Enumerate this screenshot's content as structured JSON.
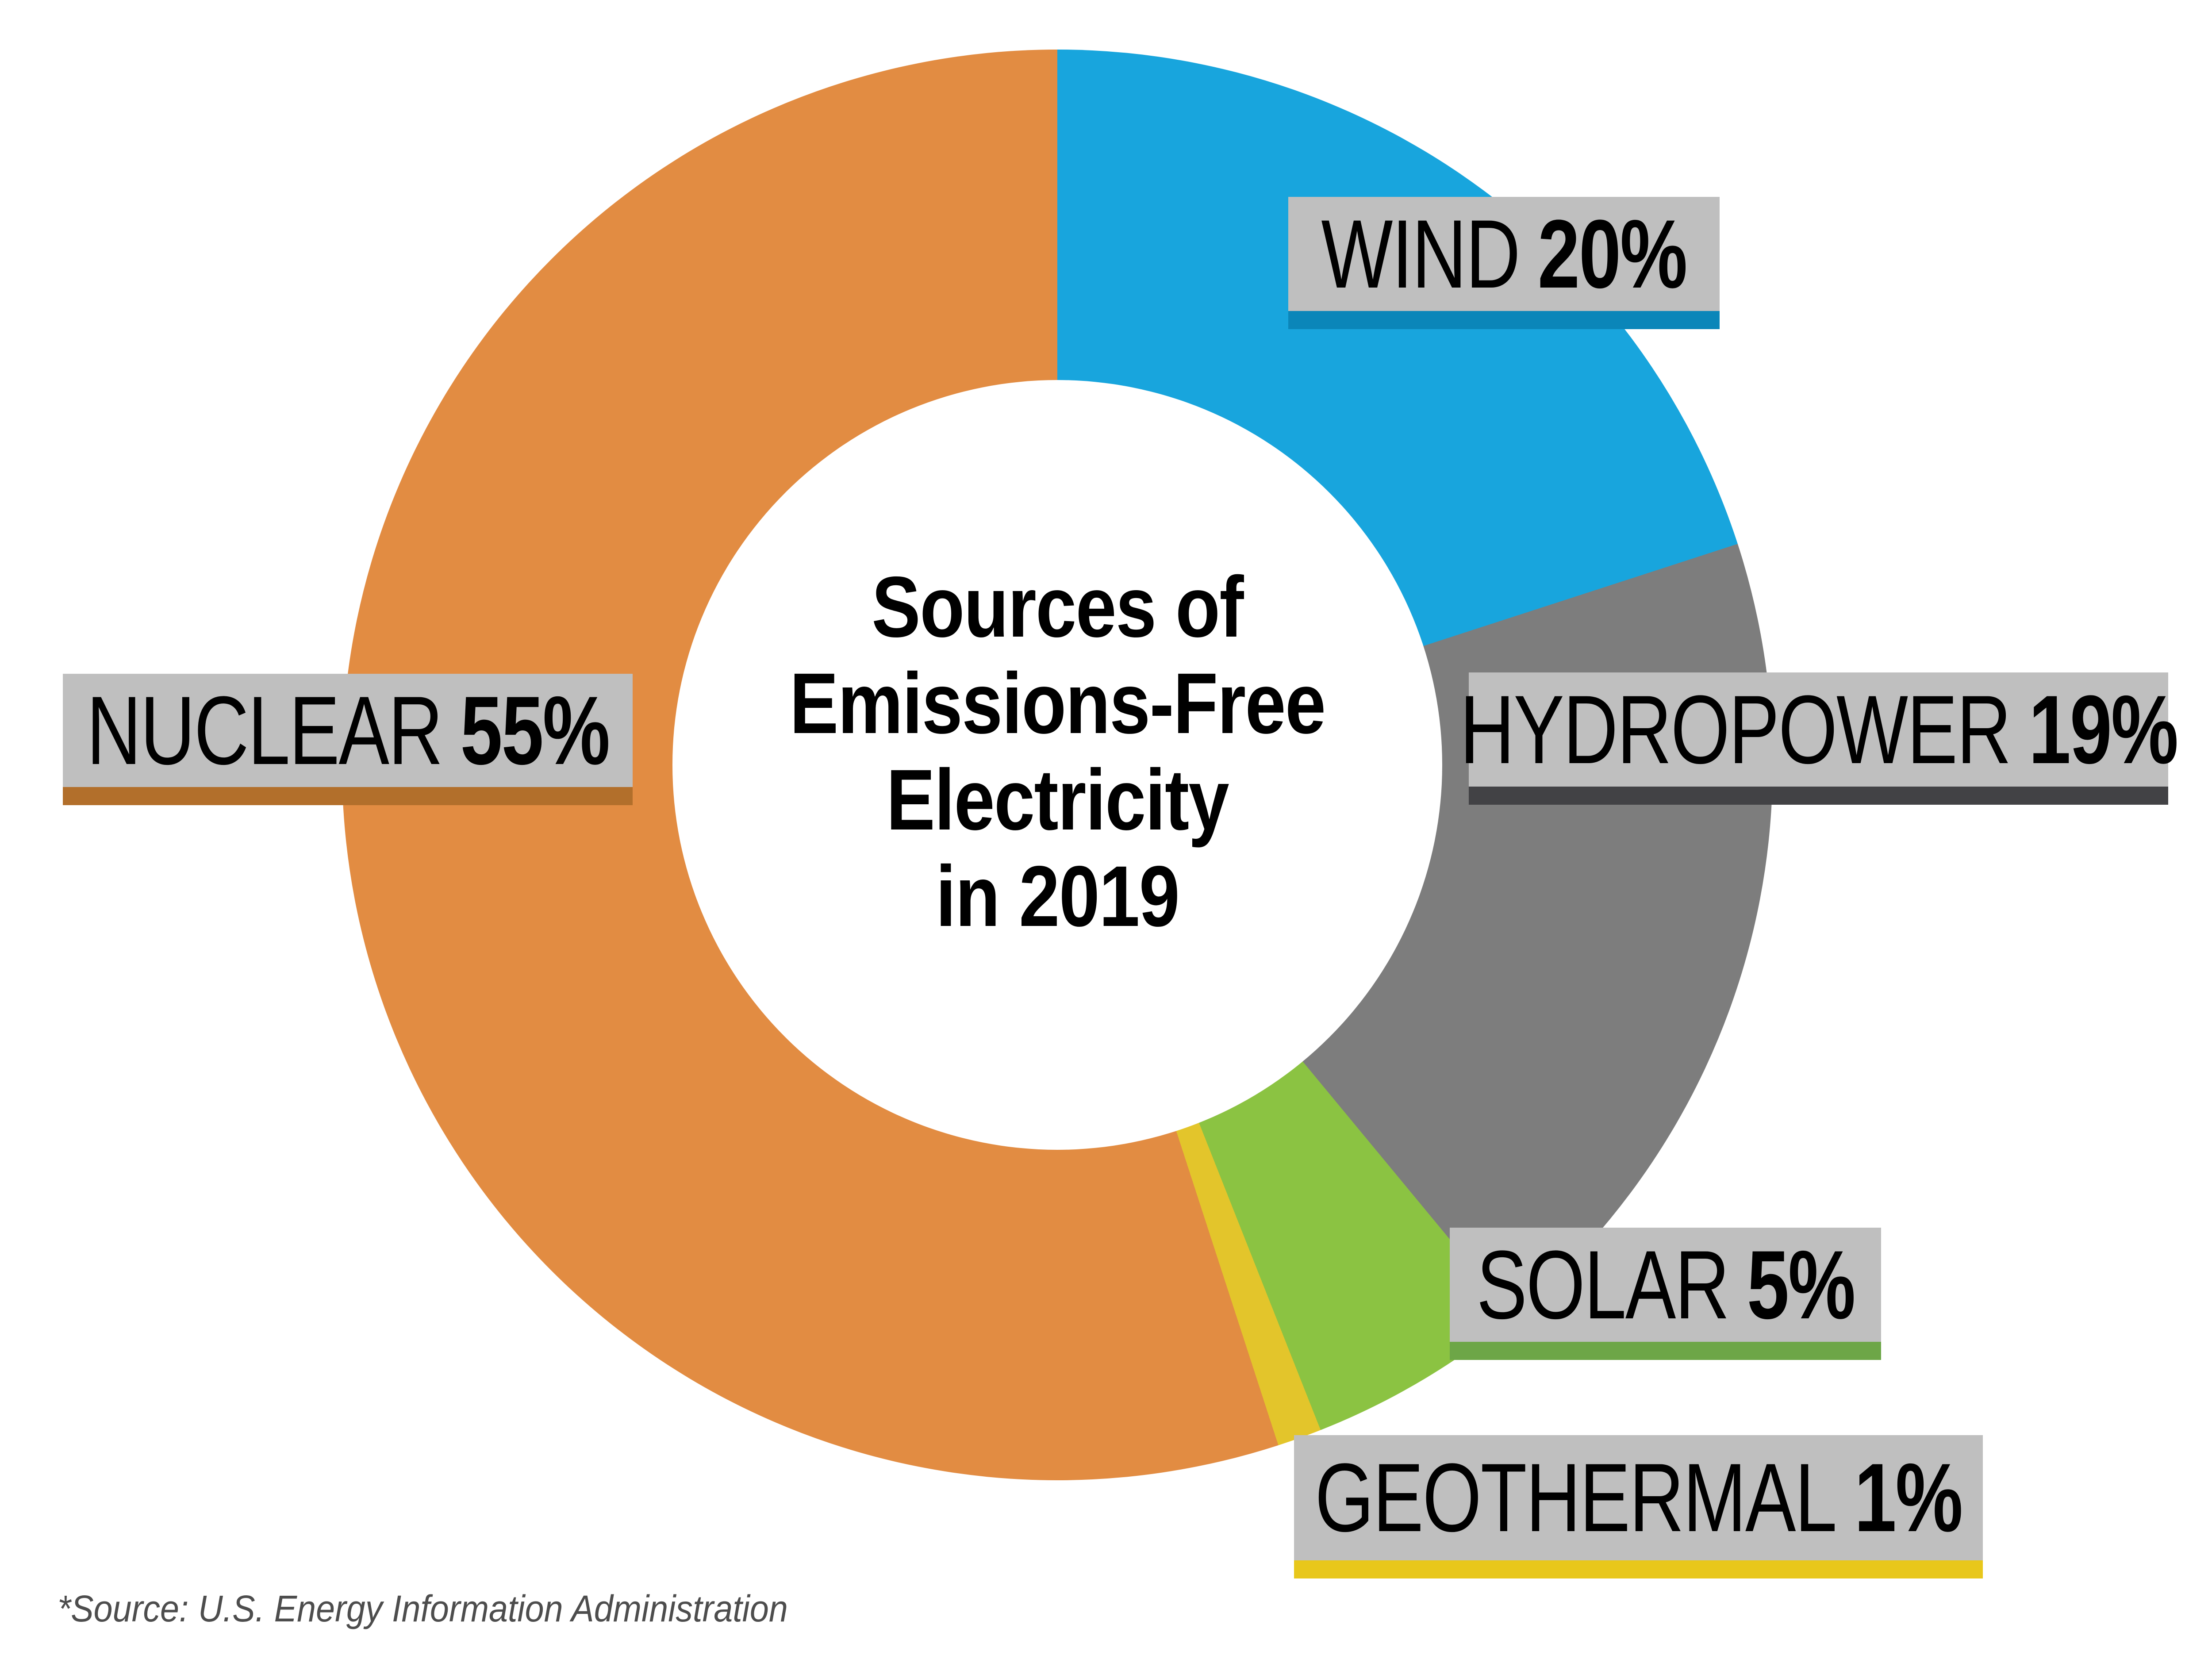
{
  "chart_data": {
    "type": "pie",
    "donut": true,
    "title": "Sources of Emissions-Free Electricity in 2019",
    "title_lines": [
      "Sources of",
      "Emissions-Free",
      "Electricity",
      "in 2019"
    ],
    "start_angle_deg": 0,
    "direction": "clockwise",
    "slices": [
      {
        "label": "WIND",
        "value_pct": 20,
        "color": "#18A5DD",
        "accent_color": "#0B86B9"
      },
      {
        "label": "HYDROPOWER",
        "value_pct": 19,
        "color": "#7D7D7D",
        "accent_color": "#424245"
      },
      {
        "label": "SOLAR",
        "value_pct": 5,
        "color": "#8BC342",
        "accent_color": "#6DA647"
      },
      {
        "label": "GEOTHERMAL",
        "value_pct": 1,
        "color": "#E3C52B",
        "accent_color": "#E8C71B"
      },
      {
        "label": "NUCLEAR",
        "value_pct": 55,
        "color": "#E28C42",
        "accent_color": "#B26F2B"
      }
    ],
    "legend_position": "callout-labels",
    "source_note": "*Source: U.S. Energy Information Administration"
  },
  "labels": {
    "wind": {
      "name": "WIND",
      "pct": "20%"
    },
    "hydropower": {
      "name": "HYDROPOWER",
      "pct": "19%"
    },
    "solar": {
      "name": "SOLAR",
      "pct": "5%"
    },
    "geothermal": {
      "name": "GEOTHERMAL",
      "pct": "1%"
    },
    "nuclear": {
      "name": "NUCLEAR",
      "pct": "55%"
    }
  },
  "colors": {
    "background": "#FFFFFF",
    "label_bg": "#BFBFBF",
    "title_text": "#000000",
    "source_text": "#4D4D4D"
  }
}
